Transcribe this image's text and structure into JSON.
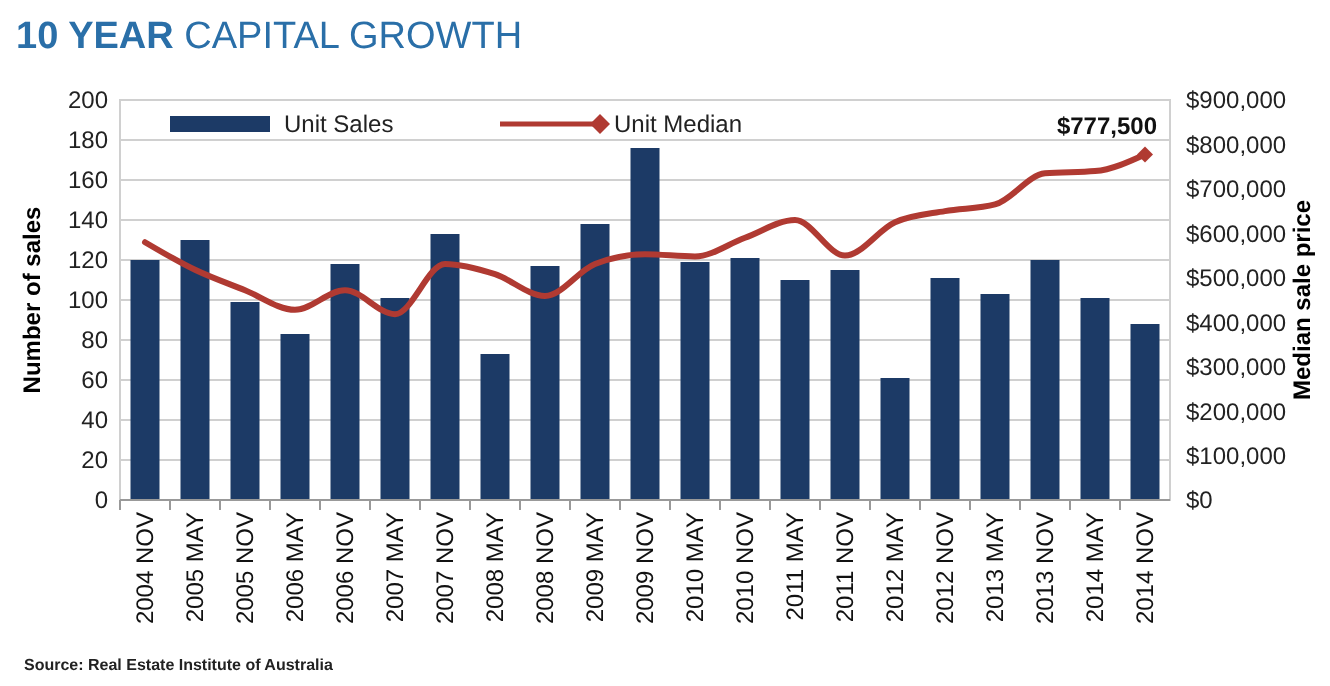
{
  "chart_data": {
    "type": "bar",
    "title": "10 YEAR CAPITAL GROWTH",
    "ylabel": "Number of sales",
    "y2label": "Median sale price",
    "categories": [
      "2004 NOV",
      "2005 MAY",
      "2005 NOV",
      "2006 MAY",
      "2006 NOV",
      "2007 MAY",
      "2007 NOV",
      "2008 MAY",
      "2008 NOV",
      "2009 MAY",
      "2009 NOV",
      "2010 MAY",
      "2010 NOV",
      "2011 MAY",
      "2011 NOV",
      "2012 MAY",
      "2012 NOV",
      "2013 MAY",
      "2013 NOV",
      "2014 MAY",
      "2014 NOV"
    ],
    "series": [
      {
        "name": "Unit Sales",
        "color": "#1c3a66",
        "values": [
          120,
          130,
          99,
          83,
          118,
          101,
          133,
          73,
          117,
          138,
          176,
          119,
          121,
          110,
          115,
          61,
          111,
          103,
          120,
          101,
          88
        ]
      },
      {
        "name": "Unit Median",
        "type": "line",
        "axis": "y2",
        "color": "#b03a32",
        "values": [
          580000,
          518000,
          472000,
          428000,
          472000,
          418000,
          531000,
          508000,
          459000,
          531000,
          553000,
          548000,
          590000,
          630000,
          550000,
          625000,
          650000,
          665000,
          735000,
          740000,
          777500
        ],
        "value_labels": [
          null,
          null,
          null,
          null,
          null,
          null,
          null,
          null,
          null,
          null,
          null,
          null,
          null,
          null,
          null,
          null,
          null,
          null,
          null,
          null,
          "$777,500"
        ]
      }
    ],
    "ylim": [
      0,
      200
    ],
    "yticks": [
      0,
      20,
      40,
      60,
      80,
      100,
      120,
      140,
      160,
      180,
      200
    ],
    "y2lim": [
      0,
      900000
    ],
    "y2ticks": [
      {
        "value": 0,
        "label": "$0"
      },
      {
        "value": 100000,
        "label": "$100,000"
      },
      {
        "value": 200000,
        "label": "$200,000"
      },
      {
        "value": 300000,
        "label": "$300,000"
      },
      {
        "value": 400000,
        "label": "$400,000"
      },
      {
        "value": 500000,
        "label": "$500,000"
      },
      {
        "value": 600000,
        "label": "$600,000"
      },
      {
        "value": 700000,
        "label": "$700,000"
      },
      {
        "value": 800000,
        "label": "$800,000"
      },
      {
        "value": 900000,
        "label": "$900,000"
      }
    ],
    "grid": "y",
    "legend": "top left",
    "marker": "none",
    "line_style": "solid",
    "annotations": [
      "Source: Real Estate Institute of Australia"
    ]
  }
}
